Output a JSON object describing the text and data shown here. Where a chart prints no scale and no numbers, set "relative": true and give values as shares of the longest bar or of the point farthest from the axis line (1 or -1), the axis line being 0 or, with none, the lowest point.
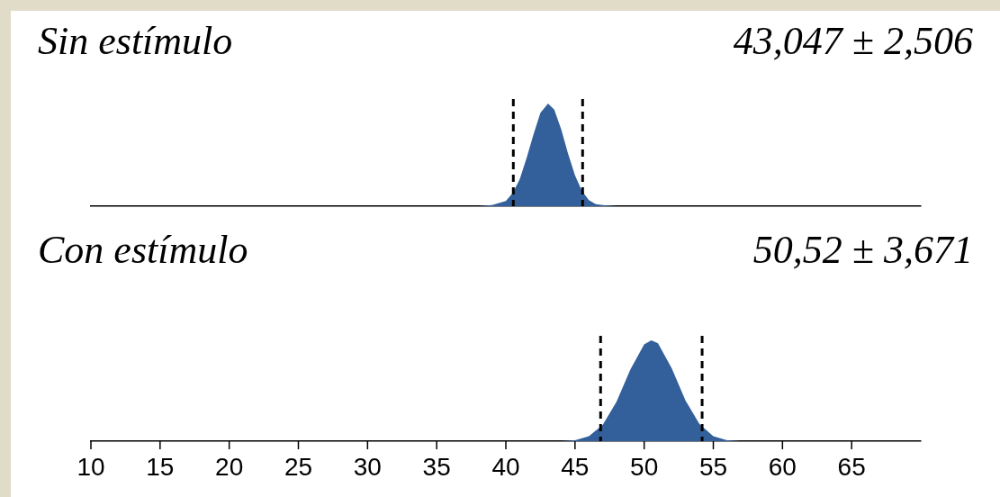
{
  "chart_data": [
    {
      "type": "area",
      "title": "Sin estímulo",
      "annotations": [
        "43,047 ± 2,506"
      ],
      "relative": true,
      "xlim": [
        10,
        70
      ],
      "tick_labels": false,
      "x": [
        38,
        39,
        40,
        40.5,
        41,
        41.5,
        42,
        42.5,
        43.05,
        43.5,
        44,
        44.5,
        45,
        45.5,
        46,
        46.5,
        47,
        48
      ],
      "series": [
        {
          "color": "#335f9a",
          "values": [
            0,
            0.01,
            0.05,
            0.13,
            0.26,
            0.47,
            0.7,
            0.91,
            1,
            0.94,
            0.75,
            0.51,
            0.3,
            0.15,
            0.06,
            0.02,
            0.01,
            0
          ]
        }
      ],
      "ref_lines": [
        {
          "axis": "x",
          "value": 40.54,
          "line_style": "dashed",
          "color": "#000000"
        },
        {
          "axis": "x",
          "value": 45.55,
          "line_style": "dashed",
          "color": "#000000"
        }
      ]
    },
    {
      "type": "area",
      "title": "Con estímulo",
      "annotations": [
        "50,52 ± 3,671"
      ],
      "relative": true,
      "xlim": [
        10,
        70
      ],
      "xticks": [
        10,
        15,
        20,
        25,
        30,
        35,
        40,
        45,
        50,
        55,
        60,
        65
      ],
      "x": [
        44,
        45,
        46,
        47,
        48,
        49,
        50,
        50.52,
        51,
        52,
        53,
        54,
        55,
        56,
        57
      ],
      "series": [
        {
          "color": "#335f9a",
          "values": [
            0,
            0.01,
            0.05,
            0.16,
            0.39,
            0.71,
            0.96,
            1,
            0.97,
            0.72,
            0.4,
            0.17,
            0.05,
            0.01,
            0
          ]
        }
      ],
      "ref_lines": [
        {
          "axis": "x",
          "value": 46.85,
          "line_style": "dashed",
          "color": "#000000"
        },
        {
          "axis": "x",
          "value": 54.19,
          "line_style": "dashed",
          "color": "#000000"
        }
      ]
    }
  ]
}
